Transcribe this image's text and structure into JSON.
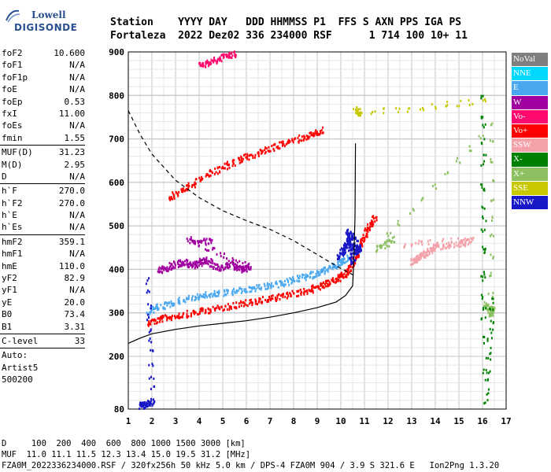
{
  "logo": {
    "line1": "Lowell",
    "line2": "DIGISONDE"
  },
  "header": {
    "line1": "Station    YYYY DAY   DDD HHMMSS P1  FFS S AXN PPS IGA PS",
    "line2": "Fortaleza  2022 Dez02 336 234000 RSF      1 714 100 10+ 11"
  },
  "params": [
    {
      "label": "foF2",
      "value": "10.600"
    },
    {
      "label": "foF1",
      "value": "N/A"
    },
    {
      "label": "foF1p",
      "value": "N/A"
    },
    {
      "label": "foE",
      "value": "N/A"
    },
    {
      "label": "foEp",
      "value": "0.53"
    },
    {
      "label": "fxI",
      "value": "11.00"
    },
    {
      "label": "foEs",
      "value": "N/A"
    },
    {
      "label": "fmin",
      "value": "1.55"
    },
    {
      "sep": true
    },
    {
      "label": "MUF(D)",
      "value": "31.23"
    },
    {
      "label": "M(D)",
      "value": "2.95"
    },
    {
      "label": "D",
      "value": "N/A"
    },
    {
      "sep": true
    },
    {
      "label": "h`F",
      "value": "270.0"
    },
    {
      "label": "h`F2",
      "value": "270.0"
    },
    {
      "label": "h`E",
      "value": "N/A"
    },
    {
      "label": "h`Es",
      "value": "N/A"
    },
    {
      "sep": true
    },
    {
      "label": "hmF2",
      "value": "359.1"
    },
    {
      "label": "hmF1",
      "value": "N/A"
    },
    {
      "label": "hmE",
      "value": "110.0"
    },
    {
      "label": "yF2",
      "value": "82.9"
    },
    {
      "label": "yF1",
      "value": "N/A"
    },
    {
      "label": "yE",
      "value": "20.0"
    },
    {
      "label": "B0",
      "value": "73.4"
    },
    {
      "label": "B1",
      "value": "3.31"
    },
    {
      "sep": true
    },
    {
      "label": "C-level",
      "value": "33"
    },
    {
      "sep": true
    },
    {
      "text": "Auto:"
    },
    {
      "text": "Artist5"
    },
    {
      "text": "500200"
    }
  ],
  "legend": [
    {
      "label": "NoVal",
      "color": "#7f7f7f"
    },
    {
      "label": "NNE",
      "color": "#00d8ff"
    },
    {
      "label": "E",
      "color": "#4aa8f0"
    },
    {
      "label": "W",
      "color": "#a0009f"
    },
    {
      "label": "Vo-",
      "color": "#ff0a6e"
    },
    {
      "label": "Vo+",
      "color": "#ff0000"
    },
    {
      "label": "SSW",
      "color": "#f2a2a8"
    },
    {
      "label": "X-",
      "color": "#008000"
    },
    {
      "label": "X+",
      "color": "#8cc060"
    },
    {
      "label": "SSE",
      "color": "#c8c800"
    },
    {
      "label": "NNW",
      "color": "#1818c8"
    }
  ],
  "chart_data": {
    "type": "scatter",
    "xlim": [
      1,
      17
    ],
    "ylim": [
      80,
      900
    ],
    "x_ticks": [
      1,
      2,
      3,
      4,
      5,
      6,
      7,
      8,
      9,
      10,
      11,
      12,
      13,
      14,
      15,
      16,
      17
    ],
    "y_ticks": [
      80,
      200,
      300,
      400,
      500,
      600,
      700,
      800,
      900
    ],
    "grid": true,
    "profile_curve": [
      [
        1.0,
        230
      ],
      [
        1.5,
        242
      ],
      [
        2.0,
        252
      ],
      [
        3.0,
        262
      ],
      [
        4.0,
        270
      ],
      [
        5.0,
        276
      ],
      [
        6.0,
        282
      ],
      [
        7.0,
        290
      ],
      [
        8.0,
        300
      ],
      [
        9.0,
        312
      ],
      [
        9.8,
        325
      ],
      [
        10.2,
        340
      ],
      [
        10.5,
        362
      ],
      [
        10.55,
        420
      ],
      [
        10.6,
        520
      ],
      [
        10.62,
        690
      ]
    ],
    "muf_curve": [
      [
        1.0,
        765
      ],
      [
        1.5,
        710
      ],
      [
        2.0,
        665
      ],
      [
        3.0,
        605
      ],
      [
        4.0,
        565
      ],
      [
        5.0,
        535
      ],
      [
        6.0,
        512
      ],
      [
        7.0,
        492
      ],
      [
        8.0,
        466
      ],
      [
        9.0,
        434
      ],
      [
        9.5,
        418
      ],
      [
        10.0,
        402
      ],
      [
        10.6,
        385
      ]
    ],
    "traces": [
      {
        "name": "F2 O-trace",
        "color": "#ff0000",
        "points": [
          [
            1.8,
            280
          ],
          [
            2.5,
            290
          ],
          [
            3.5,
            300
          ],
          [
            4.5,
            310
          ],
          [
            5.5,
            320
          ],
          [
            6.5,
            330
          ],
          [
            7.5,
            340
          ],
          [
            8.5,
            352
          ],
          [
            9.2,
            365
          ],
          [
            9.8,
            380
          ],
          [
            10.2,
            395
          ],
          [
            10.5,
            420
          ],
          [
            10.8,
            455
          ],
          [
            11.1,
            490
          ],
          [
            11.4,
            520
          ]
        ]
      },
      {
        "name": "F2 E-trace",
        "color": "#4aa8f0",
        "points": [
          [
            1.8,
            305
          ],
          [
            2.5,
            320
          ],
          [
            3.5,
            335
          ],
          [
            4.5,
            345
          ],
          [
            5.5,
            352
          ],
          [
            6.5,
            360
          ],
          [
            7.5,
            370
          ],
          [
            8.5,
            385
          ],
          [
            9.2,
            398
          ],
          [
            9.8,
            412
          ],
          [
            10.3,
            430
          ]
        ]
      },
      {
        "name": "second hop",
        "color": "#ff0000",
        "points": [
          [
            2.7,
            565
          ],
          [
            3.5,
            590
          ],
          [
            4.5,
            625
          ],
          [
            5.5,
            650
          ],
          [
            6.5,
            670
          ],
          [
            7.5,
            690
          ],
          [
            8.5,
            708
          ],
          [
            9.2,
            722
          ]
        ]
      },
      {
        "name": "third hop",
        "color": "#ff0a6e",
        "points": [
          [
            4.0,
            870
          ],
          [
            4.5,
            880
          ],
          [
            5.0,
            890
          ],
          [
            5.5,
            898
          ]
        ]
      },
      {
        "name": "W spread",
        "color": "#a0009f",
        "points": [
          [
            2.3,
            400
          ],
          [
            2.8,
            410
          ],
          [
            3.3,
            420
          ],
          [
            3.8,
            410
          ],
          [
            4.2,
            425
          ],
          [
            4.8,
            405
          ],
          [
            5.3,
            415
          ],
          [
            5.8,
            400
          ],
          [
            6.1,
            410
          ],
          [
            3.5,
            470
          ],
          [
            4.5,
            465
          ]
        ]
      },
      {
        "name": "NNW cluster",
        "color": "#1818c8",
        "points": [
          [
            9.9,
            430
          ],
          [
            10.1,
            450
          ],
          [
            10.3,
            470
          ],
          [
            10.6,
            440
          ],
          [
            10.8,
            455
          ],
          [
            10.2,
            490
          ],
          [
            10.5,
            420
          ],
          [
            10.4,
            480
          ]
        ]
      },
      {
        "name": "SSW points",
        "color": "#f2a2a8",
        "points": [
          [
            13.0,
            420
          ],
          [
            13.3,
            430
          ],
          [
            13.6,
            440
          ],
          [
            14.0,
            455
          ],
          [
            15.0,
            460
          ],
          [
            15.5,
            470
          ],
          [
            12.6,
            460
          ]
        ]
      },
      {
        "name": "X+ points",
        "color": "#8cc060",
        "points": [
          [
            16.1,
            320
          ],
          [
            16.4,
            310
          ],
          [
            16.3,
            300
          ],
          [
            16.4,
            740
          ],
          [
            11.5,
            450
          ],
          [
            12.2,
            470
          ]
        ]
      },
      {
        "name": "X- points",
        "color": "#008000",
        "points": [
          [
            16.0,
            290
          ],
          [
            16.0,
            800
          ],
          [
            16.1,
            100
          ],
          [
            16.4,
            330
          ]
        ]
      },
      {
        "name": "SSE points",
        "color": "#c8c800",
        "points": [
          [
            10.6,
            770
          ],
          [
            10.8,
            760
          ],
          [
            16.0,
            790
          ]
        ]
      },
      {
        "name": "low points",
        "color": "#1818c8",
        "points": [
          [
            1.5,
            90
          ],
          [
            1.7,
            92
          ],
          [
            2.0,
            100
          ],
          [
            1.8,
            375
          ]
        ]
      }
    ]
  },
  "footer": {
    "line1": "D     100  200  400  600  800 1000 1500 3000 [km]",
    "line2": "MUF  11.0 11.1 11.5 12.3 13.4 15.0 19.5 31.2 [MHz]",
    "line3": "FZA0M_2022336234000.RSF / 320fx256h 50 kHz 5.0 km / DPS-4 FZA0M 904 / 3.9 S 321.6 E   Ion2Png 1.3.20"
  }
}
